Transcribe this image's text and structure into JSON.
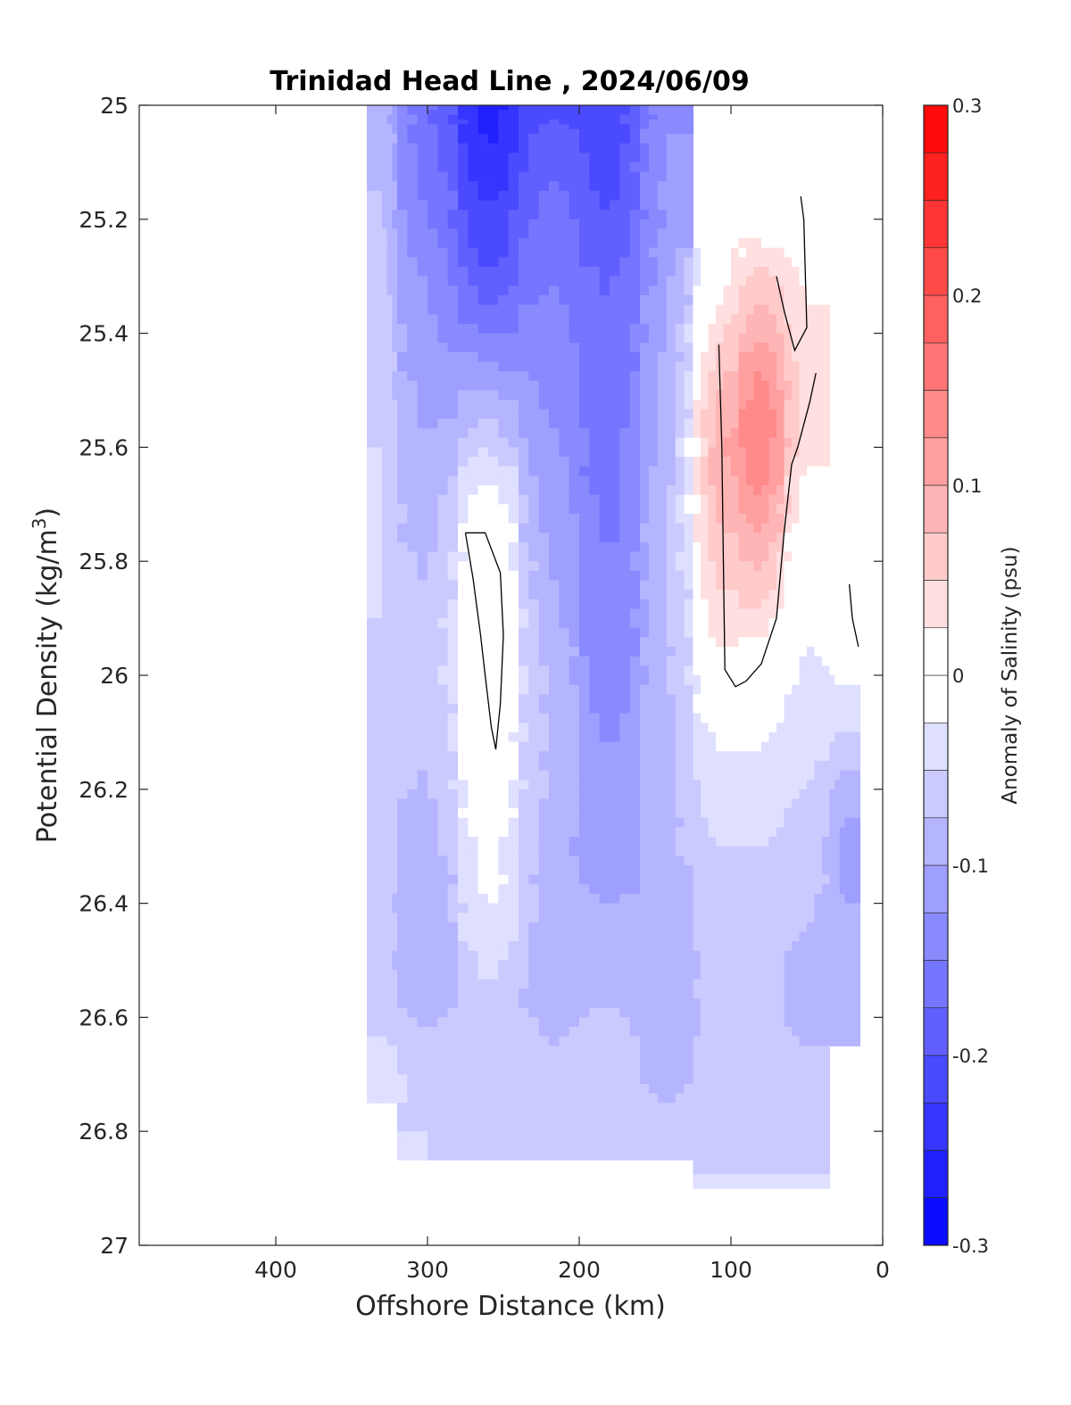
{
  "chart_data": {
    "type": "contour",
    "title": "Trinidad Head Line , 2024/06/09",
    "xlabel": "Offshore Distance (km)",
    "ylabel_main": "Potential Density (kg/m",
    "ylabel_sup": "3",
    "ylabel_close": ")",
    "xlim": [
      490,
      0
    ],
    "ylim": [
      25,
      27
    ],
    "x_reversed": true,
    "y_reversed": true,
    "xticks": [
      400,
      300,
      200,
      100,
      0
    ],
    "xtick_labels": [
      "400",
      "300",
      "200",
      "100",
      "0"
    ],
    "yticks": [
      25,
      25.2,
      25.4,
      25.6,
      25.8,
      26,
      26.2,
      26.4,
      26.6,
      26.8,
      27
    ],
    "ytick_labels": [
      "25",
      "25.2",
      "25.4",
      "25.6",
      "25.8",
      "26",
      "26.2",
      "26.4",
      "26.6",
      "26.8",
      "27"
    ],
    "colorbar": {
      "label": "Anomaly of Salinity (psu)",
      "range": [
        -0.3,
        0.3
      ],
      "levels": [
        -0.3,
        -0.275,
        -0.25,
        -0.225,
        -0.2,
        -0.175,
        -0.15,
        -0.125,
        -0.1,
        -0.075,
        -0.05,
        -0.025,
        0,
        0.025,
        0.05,
        0.075,
        0.1,
        0.125,
        0.15,
        0.175,
        0.2,
        0.225,
        0.25,
        0.275,
        0.3
      ],
      "ticks": [
        -0.3,
        -0.2,
        -0.1,
        0,
        0.1,
        0.2,
        0.3
      ],
      "tick_labels": [
        "-0.3",
        "-0.2",
        "-0.1",
        "0",
        "0.1",
        "0.2",
        "0.3"
      ],
      "colormap": "blue-white-red"
    },
    "x": [
      340,
      300,
      260,
      220,
      180,
      140,
      110,
      80,
      50,
      20
    ],
    "y": [
      25,
      25.1,
      25.2,
      25.3,
      25.4,
      25.5,
      25.6,
      25.7,
      25.8,
      25.9,
      26,
      26.1,
      26.2,
      26.3,
      26.4,
      26.5,
      26.6,
      26.7,
      26.8,
      26.9
    ],
    "z": [
      [
        -0.08,
        -0.17,
        -0.26,
        -0.2,
        -0.22,
        -0.13,
        null,
        null,
        null,
        null
      ],
      [
        -0.08,
        -0.16,
        -0.25,
        -0.18,
        -0.21,
        -0.12,
        null,
        0.0,
        0.0,
        null
      ],
      [
        -0.07,
        -0.15,
        -0.22,
        -0.16,
        -0.2,
        -0.12,
        null,
        0.0,
        -0.01,
        null
      ],
      [
        -0.07,
        -0.13,
        -0.2,
        -0.15,
        -0.18,
        -0.11,
        0.01,
        0.06,
        0.02,
        null
      ],
      [
        -0.06,
        -0.12,
        -0.15,
        -0.14,
        -0.17,
        -0.1,
        0.04,
        0.1,
        0.03,
        null
      ],
      [
        -0.06,
        -0.11,
        -0.1,
        -0.13,
        -0.17,
        -0.09,
        0.07,
        0.14,
        0.04,
        null
      ],
      [
        -0.05,
        -0.1,
        -0.05,
        -0.12,
        -0.16,
        -0.09,
        0.09,
        0.15,
        0.03,
        null
      ],
      [
        -0.05,
        -0.09,
        0.0,
        -0.11,
        -0.16,
        -0.08,
        0.08,
        0.12,
        0.01,
        null
      ],
      [
        -0.05,
        -0.08,
        0.01,
        -0.1,
        -0.15,
        -0.08,
        0.06,
        0.08,
        -0.01,
        0.0
      ],
      [
        -0.05,
        -0.07,
        0.02,
        -0.09,
        -0.15,
        -0.08,
        0.04,
        0.04,
        -0.02,
        0.01
      ],
      [
        -0.06,
        -0.07,
        0.02,
        -0.08,
        -0.14,
        -0.08,
        0.01,
        0.0,
        -0.03,
        -0.02
      ],
      [
        -0.06,
        -0.07,
        0.01,
        -0.08,
        -0.13,
        -0.08,
        -0.02,
        -0.02,
        -0.04,
        -0.05
      ],
      [
        -0.06,
        -0.08,
        0.0,
        -0.08,
        -0.12,
        -0.08,
        -0.04,
        -0.04,
        -0.05,
        -0.09
      ],
      [
        -0.06,
        -0.09,
        -0.01,
        -0.09,
        -0.12,
        -0.08,
        -0.05,
        -0.05,
        -0.06,
        -0.11
      ],
      [
        -0.06,
        -0.1,
        -0.02,
        -0.08,
        -0.1,
        -0.09,
        -0.06,
        -0.06,
        -0.07,
        -0.1
      ],
      [
        -0.06,
        -0.1,
        -0.04,
        -0.09,
        -0.09,
        -0.09,
        -0.07,
        -0.07,
        -0.08,
        -0.09
      ],
      [
        -0.06,
        -0.08,
        -0.06,
        -0.08,
        -0.07,
        -0.09,
        -0.07,
        -0.07,
        -0.08,
        -0.09
      ],
      [
        -0.03,
        -0.06,
        -0.06,
        -0.07,
        -0.07,
        -0.08,
        -0.07,
        -0.07,
        -0.07,
        null
      ],
      [
        null,
        -0.05,
        -0.06,
        -0.06,
        -0.06,
        -0.07,
        -0.07,
        -0.07,
        -0.06,
        null
      ],
      [
        null,
        null,
        null,
        null,
        null,
        null,
        -0.05,
        -0.05,
        -0.05,
        null
      ]
    ],
    "contour_line_level": 0
  }
}
